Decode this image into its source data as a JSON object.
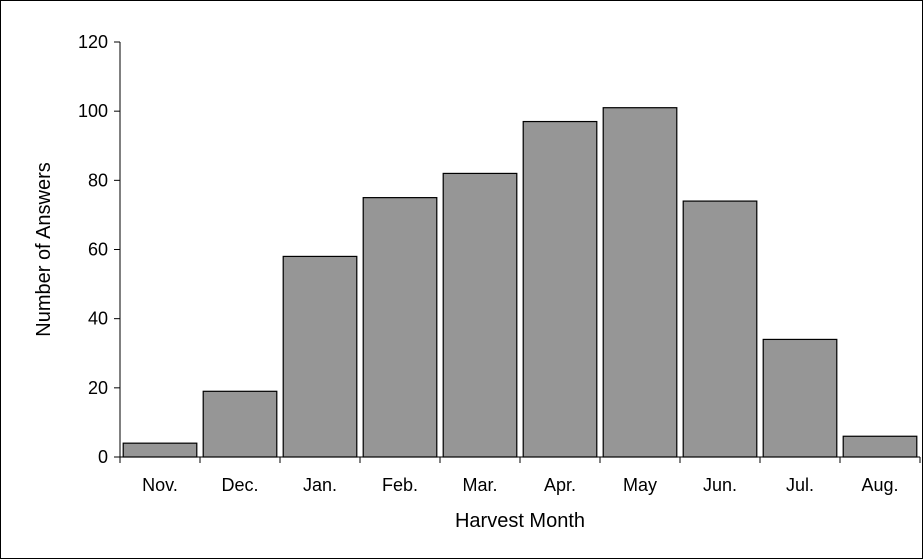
{
  "chart_data": {
    "type": "bar",
    "title": "",
    "xlabel": "Harvest Month",
    "ylabel": "Number of Answers",
    "categories": [
      "Nov.",
      "Dec.",
      "Jan.",
      "Feb.",
      "Mar.",
      "Apr.",
      "May",
      "Jun.",
      "Jul.",
      "Aug."
    ],
    "values": [
      4,
      19,
      58,
      75,
      82,
      97,
      101,
      74,
      34,
      6
    ],
    "ylim": [
      0,
      120
    ],
    "yticks": [
      0,
      20,
      40,
      60,
      80,
      100,
      120
    ],
    "grid": false,
    "legend": "none",
    "bar_color": "#969696",
    "bar_edge_color": "#000000"
  }
}
